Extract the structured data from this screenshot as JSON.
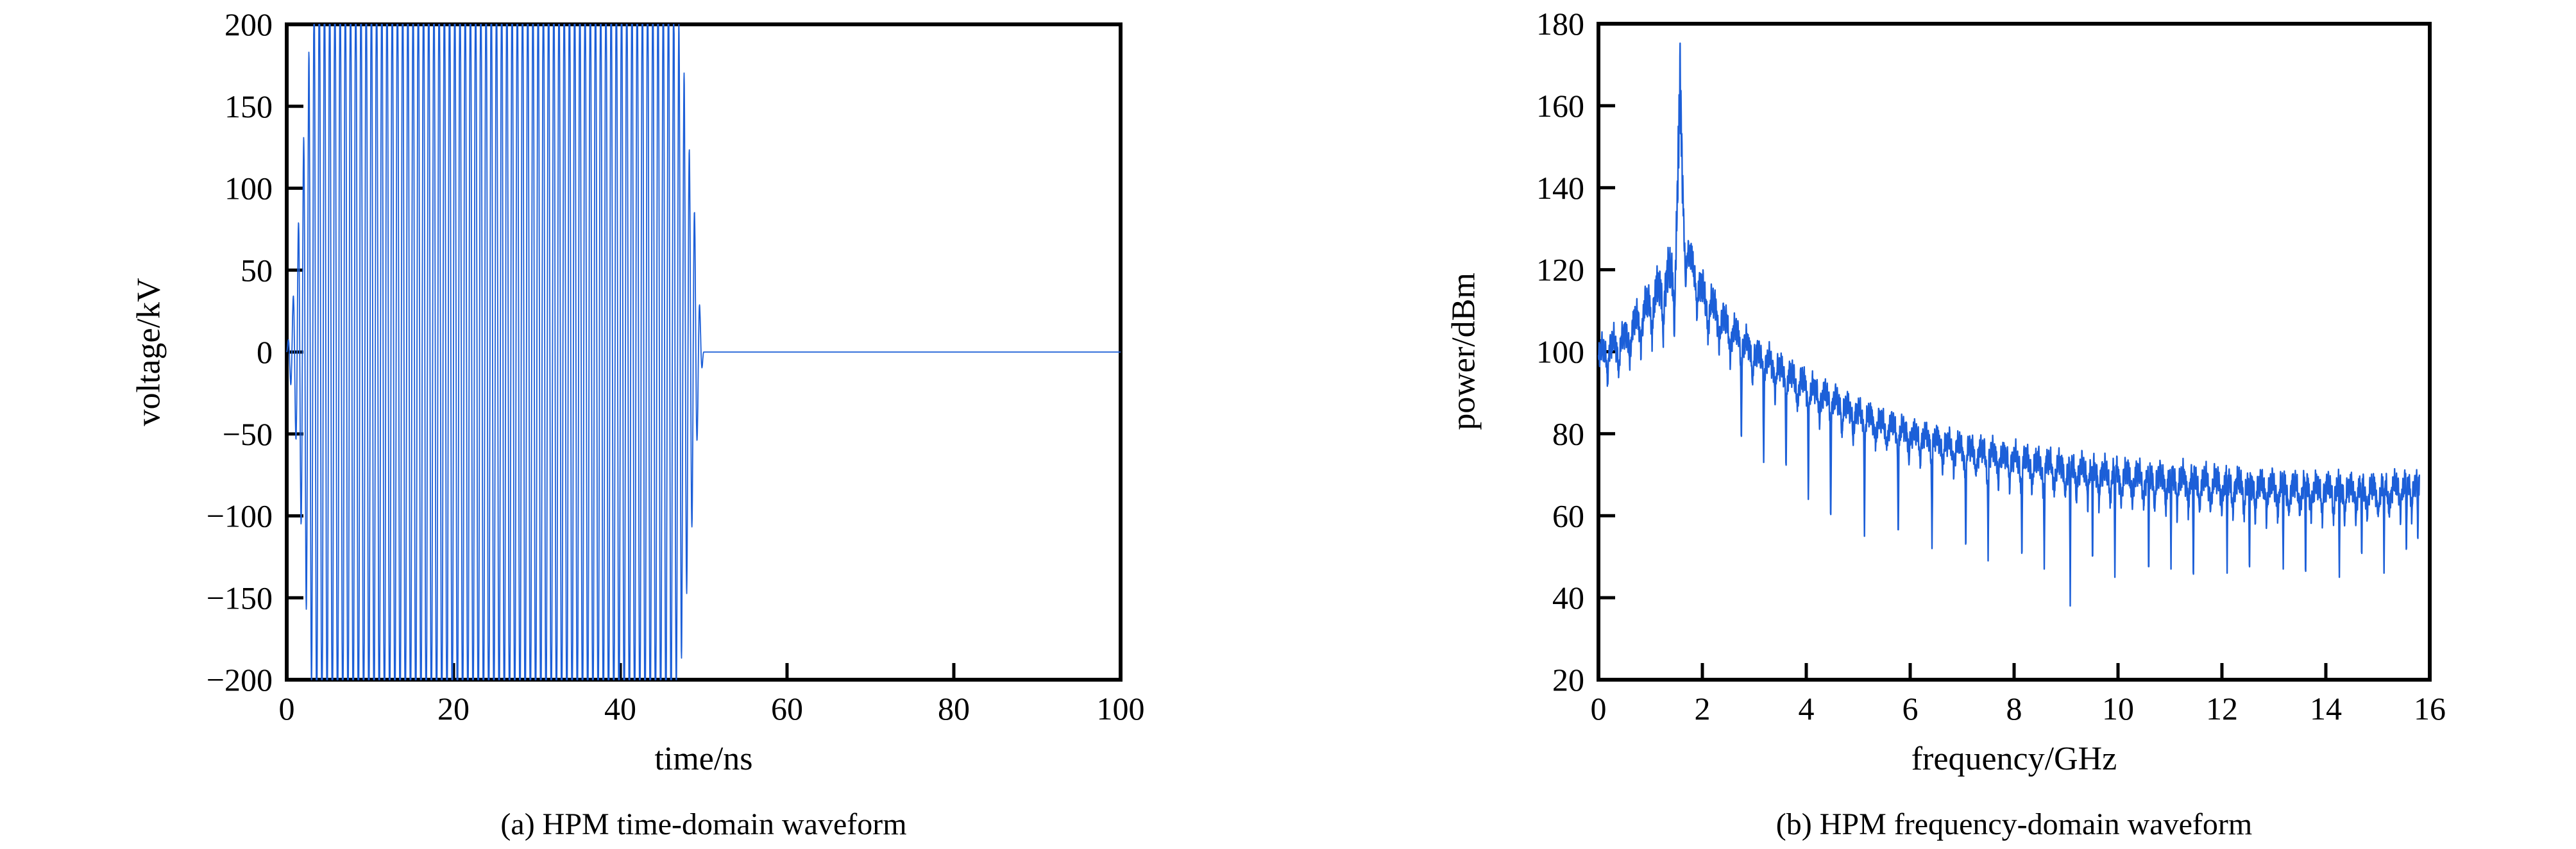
{
  "page": {
    "background": "#ffffff",
    "text_color": "#000000"
  },
  "figures": [
    {
      "caption": "(a) HPM time-domain waveform",
      "xlabel": "time/ns",
      "ylabel": "voltage/kV"
    },
    {
      "caption": "(b) HPM frequency-domain waveform",
      "xlabel": "frequency/GHz",
      "ylabel": "power/dBm"
    }
  ],
  "chart_data": [
    {
      "type": "line",
      "title": "(a) HPM time-domain waveform",
      "xlabel": "time/ns",
      "ylabel": "voltage/kV",
      "xlim": [
        0,
        100
      ],
      "ylim": [
        -200,
        200
      ],
      "xticks": [
        0,
        20,
        40,
        60,
        80,
        100
      ],
      "yticks": [
        -200,
        -150,
        -100,
        -50,
        0,
        50,
        100,
        150,
        200
      ],
      "grid": false,
      "legend": "none",
      "line_color": "#1c5fd8",
      "axis_color": "#000000",
      "signal": {
        "description": "HPM pulse: ~1.6 GHz carrier, ~50 ns duration, amplitude clipped at plot limits +/-200 kV, zero after 50 ns",
        "carrier_ghz": 1.6,
        "samples_per_cycle": 24,
        "clip_kv": 200,
        "active_range_ns": [
          0,
          50
        ],
        "flat_value_kv": 0,
        "flat_range_ns": [
          50,
          100
        ],
        "envelope_points_ns_kv": [
          [
            0,
            0
          ],
          [
            0.6,
            25
          ],
          [
            1.0,
            45
          ],
          [
            1.6,
            95
          ],
          [
            2.2,
            145
          ],
          [
            2.8,
            195
          ],
          [
            3.4,
            235
          ],
          [
            4.0,
            250
          ],
          [
            44.0,
            250
          ],
          [
            46.0,
            240
          ],
          [
            47.0,
            205
          ],
          [
            47.7,
            168
          ],
          [
            48.3,
            122
          ],
          [
            48.8,
            96
          ],
          [
            49.2,
            55
          ],
          [
            49.6,
            22
          ],
          [
            49.9,
            5
          ],
          [
            50.0,
            0
          ]
        ]
      }
    },
    {
      "type": "line",
      "title": "(b) HPM frequency-domain waveform",
      "xlabel": "frequency/GHz",
      "ylabel": "power/dBm",
      "xlim": [
        0,
        16
      ],
      "ylim": [
        20,
        180
      ],
      "xticks": [
        0,
        2,
        4,
        6,
        8,
        10,
        12,
        14,
        16
      ],
      "yticks": [
        20,
        40,
        60,
        80,
        100,
        120,
        140,
        160,
        180
      ],
      "grid": false,
      "legend": "none",
      "line_color": "#1c5fd8",
      "axis_color": "#000000",
      "spectrum": {
        "description": "Spectrum: sharp main lobe at ~1.57 GHz reaching ~175 dBm, sidelobe comb spaced ~0.215 GHz decaying from ~127 dBm to ~70 dBm at 16 GHz, sporadic deep notches down to ~38 dBm",
        "peak_ghz": 1.57,
        "peak_dbm": 175.4,
        "peak_base_dbm": 128,
        "lobe_spacing_ghz": 0.215,
        "f_range_ghz": [
          0,
          15.8
        ],
        "sample_step_ghz": 0.004,
        "floor_clamp_dbm": 37,
        "upper_envelope_points_ghz_dbm": [
          [
            0,
            103
          ],
          [
            0.5,
            107
          ],
          [
            1.0,
            117
          ],
          [
            1.45,
            127
          ],
          [
            1.57,
            128
          ],
          [
            1.72,
            128
          ],
          [
            2.0,
            119
          ],
          [
            2.5,
            110
          ],
          [
            3.0,
            103
          ],
          [
            4.0,
            95
          ],
          [
            5.0,
            88
          ],
          [
            6.0,
            83
          ],
          [
            7.0,
            79.5
          ],
          [
            8.0,
            77
          ],
          [
            9.0,
            75
          ],
          [
            10.0,
            73.5
          ],
          [
            11.0,
            72.5
          ],
          [
            12.0,
            71.5
          ],
          [
            13.0,
            70.5
          ],
          [
            14.0,
            70
          ],
          [
            15.0,
            69.5
          ],
          [
            15.8,
            71
          ]
        ],
        "lower_envelope_points_ghz_dbm": [
          [
            0,
            87
          ],
          [
            0.5,
            90
          ],
          [
            1.0,
            96
          ],
          [
            1.45,
            95
          ],
          [
            1.57,
            116
          ],
          [
            1.72,
            112
          ],
          [
            2.0,
            98
          ],
          [
            2.5,
            93
          ],
          [
            3.0,
            88
          ],
          [
            4.0,
            80
          ],
          [
            5.0,
            74
          ],
          [
            6.0,
            70
          ],
          [
            7.0,
            66
          ],
          [
            8.0,
            63
          ],
          [
            9.0,
            60
          ],
          [
            10.0,
            58
          ],
          [
            11.0,
            57
          ],
          [
            12.0,
            56
          ],
          [
            13.0,
            55
          ],
          [
            14.0,
            55
          ],
          [
            15.0,
            55
          ],
          [
            15.8,
            57
          ]
        ],
        "deep_spikes_ghz_dbm": [
          [
            2.75,
            77
          ],
          [
            3.18,
            73
          ],
          [
            3.61,
            70
          ],
          [
            4.04,
            64
          ],
          [
            4.47,
            57
          ],
          [
            5.12,
            55
          ],
          [
            5.77,
            53
          ],
          [
            6.42,
            52
          ],
          [
            7.07,
            50
          ],
          [
            7.5,
            49
          ],
          [
            8.15,
            48
          ],
          [
            8.58,
            47
          ],
          [
            9.08,
            38
          ],
          [
            9.51,
            47
          ],
          [
            9.94,
            45
          ],
          [
            10.59,
            44
          ],
          [
            11.02,
            47
          ],
          [
            11.45,
            42
          ],
          [
            12.1,
            46
          ],
          [
            12.53,
            44
          ],
          [
            13.18,
            47
          ],
          [
            13.61,
            43
          ],
          [
            14.26,
            45
          ],
          [
            14.69,
            48
          ],
          [
            15.12,
            46
          ],
          [
            15.55,
            49
          ],
          [
            15.77,
            52
          ]
        ]
      }
    }
  ]
}
